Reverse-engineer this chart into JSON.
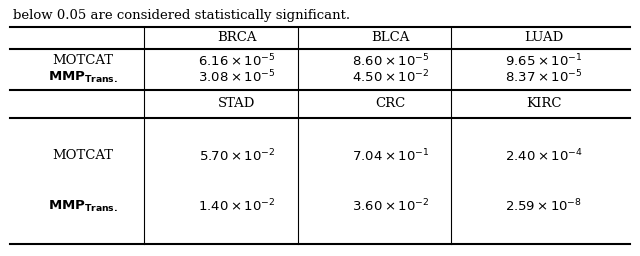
{
  "caption": "below 0.05 are considered statistically significant.",
  "table1_headers": [
    "",
    "BRCA",
    "BLCA",
    "LUAD"
  ],
  "table2_headers": [
    "",
    "STAD",
    "CRC",
    "KIRC"
  ],
  "cells_t1": [
    [
      "$6.16 \\times 10^{-5}$",
      "$8.60 \\times 10^{-5}$",
      "$9.65 \\times 10^{-1}$"
    ],
    [
      "$3.08 \\times 10^{-5}$",
      "$4.50 \\times 10^{-2}$",
      "$8.37 \\times 10^{-5}$"
    ]
  ],
  "cells_t2": [
    [
      "$5.70 \\times 10^{-2}$",
      "$7.04 \\times 10^{-1}$",
      "$2.40 \\times 10^{-4}$"
    ],
    [
      "$1.40 \\times 10^{-2}$",
      "$3.60 \\times 10^{-2}$",
      "$2.59 \\times 10^{-8}$"
    ]
  ],
  "bg_color": "#ffffff",
  "text_color": "#000000",
  "font_size": 9.5
}
